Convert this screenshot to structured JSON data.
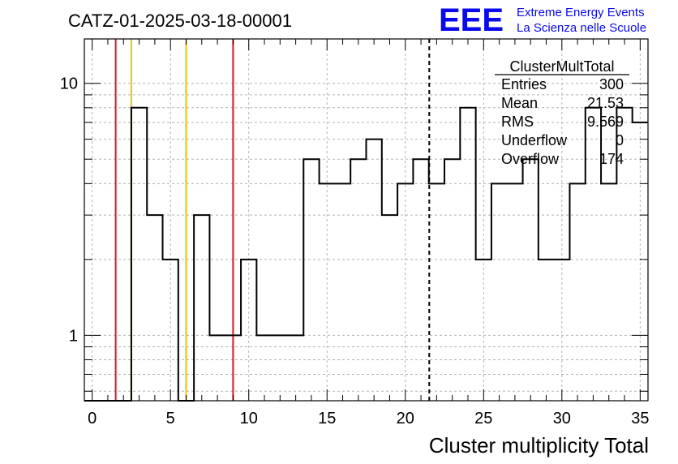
{
  "title": "CATZ-01-2025-03-18-00001",
  "logo": {
    "mark": "EEE",
    "line1": "Extreme Energy Events",
    "line2": "La Scienza nelle Scuole",
    "color": "#0a0aee"
  },
  "stats_box": {
    "name": "ClusterMultTotal",
    "rows": [
      {
        "label": "Entries",
        "value": "300"
      },
      {
        "label": "Mean",
        "value": "21.53"
      },
      {
        "label": "RMS",
        "value": "9.569"
      },
      {
        "label": "Underflow",
        "value": "0"
      },
      {
        "label": "Overflow",
        "value": "174"
      }
    ]
  },
  "chart_data": {
    "type": "bar",
    "subtype": "step-histogram",
    "title": "CATZ-01-2025-03-18-00001",
    "xlabel": "Cluster multiplicity Total",
    "ylabel": "",
    "xlim": [
      -0.5,
      35.5
    ],
    "ylim": [
      0.55,
      15
    ],
    "y_scale": "log",
    "grid": true,
    "x_ticks": [
      0,
      5,
      10,
      15,
      20,
      25,
      30,
      35
    ],
    "y_ticks": [
      1,
      10
    ],
    "bin_width": 1,
    "bins": [
      {
        "low": -0.5,
        "value": 0
      },
      {
        "low": 0.5,
        "value": 0
      },
      {
        "low": 1.5,
        "value": 0
      },
      {
        "low": 2.5,
        "value": 8
      },
      {
        "low": 3.5,
        "value": 3
      },
      {
        "low": 4.5,
        "value": 2
      },
      {
        "low": 5.5,
        "value": 0
      },
      {
        "low": 6.5,
        "value": 3
      },
      {
        "low": 7.5,
        "value": 1
      },
      {
        "low": 8.5,
        "value": 1
      },
      {
        "low": 9.5,
        "value": 2
      },
      {
        "low": 10.5,
        "value": 1
      },
      {
        "low": 11.5,
        "value": 1
      },
      {
        "low": 12.5,
        "value": 1
      },
      {
        "low": 13.5,
        "value": 5
      },
      {
        "low": 14.5,
        "value": 4
      },
      {
        "low": 15.5,
        "value": 4
      },
      {
        "low": 16.5,
        "value": 5
      },
      {
        "low": 17.5,
        "value": 6
      },
      {
        "low": 18.5,
        "value": 3
      },
      {
        "low": 19.5,
        "value": 4
      },
      {
        "low": 20.5,
        "value": 5
      },
      {
        "low": 21.5,
        "value": 4
      },
      {
        "low": 22.5,
        "value": 5
      },
      {
        "low": 23.5,
        "value": 8
      },
      {
        "low": 24.5,
        "value": 2
      },
      {
        "low": 25.5,
        "value": 4
      },
      {
        "low": 26.5,
        "value": 4
      },
      {
        "low": 27.5,
        "value": 5
      },
      {
        "low": 28.5,
        "value": 2
      },
      {
        "low": 29.5,
        "value": 2
      },
      {
        "low": 30.5,
        "value": 4
      },
      {
        "low": 31.5,
        "value": 8
      },
      {
        "low": 32.5,
        "value": 4
      },
      {
        "low": 33.5,
        "value": 8
      },
      {
        "low": 34.5,
        "value": 7
      }
    ],
    "vertical_markers": [
      {
        "x": 1.5,
        "color": "#e0141e",
        "style": "solid"
      },
      {
        "x": 2.5,
        "color": "#f2c200",
        "style": "solid"
      },
      {
        "x": 6.0,
        "color": "#f2c200",
        "style": "solid"
      },
      {
        "x": 9.0,
        "color": "#e0141e",
        "style": "solid"
      },
      {
        "x": 21.53,
        "color": "#000000",
        "style": "dashed"
      }
    ]
  }
}
